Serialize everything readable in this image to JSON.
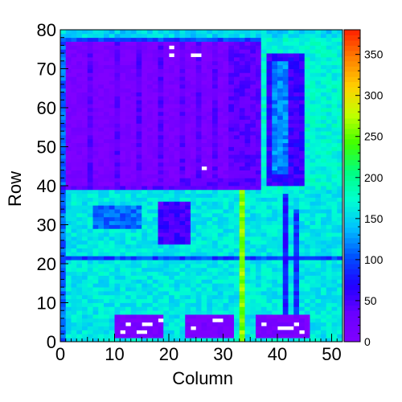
{
  "chart_data": {
    "type": "heatmap",
    "title": "",
    "xlabel": "Column",
    "ylabel": "Row",
    "xlim": [
      0,
      52
    ],
    "ylim": [
      0,
      80
    ],
    "x_ticks": [
      0,
      10,
      20,
      30,
      40,
      50
    ],
    "y_ticks": [
      0,
      10,
      20,
      30,
      40,
      50,
      60,
      70,
      80
    ],
    "color_scale": {
      "min": 0,
      "max": 380,
      "ticks": [
        0,
        50,
        100,
        150,
        200,
        250,
        300,
        350
      ],
      "palette": [
        "#8000ff",
        "#6a00ff",
        "#2000ff",
        "#0050ff",
        "#00c0ff",
        "#00ffd0",
        "#00ff80",
        "#40ff00",
        "#c0ff00",
        "#ffd000",
        "#ff8000",
        "#ff2000"
      ]
    },
    "cells": {
      "x_bins": 52,
      "y_bins": 80,
      "bin_size": [
        1,
        1
      ],
      "background_value": 160,
      "regions": [
        {
          "x": [
            0,
            52
          ],
          "y": [
            39,
            80
          ],
          "value": 100
        },
        {
          "x": [
            0,
            37
          ],
          "y": [
            39,
            77
          ],
          "value": 40
        },
        {
          "x": [
            1,
            5
          ],
          "y": [
            40,
            77
          ],
          "value": 8
        },
        {
          "x": [
            6,
            10
          ],
          "y": [
            40,
            77
          ],
          "value": 8
        },
        {
          "x": [
            11,
            14
          ],
          "y": [
            40,
            77
          ],
          "value": 8
        },
        {
          "x": [
            15,
            18
          ],
          "y": [
            40,
            77
          ],
          "value": 8
        },
        {
          "x": [
            19,
            22
          ],
          "y": [
            40,
            77
          ],
          "value": 8
        },
        {
          "x": [
            23,
            25
          ],
          "y": [
            42,
            77
          ],
          "value": 8
        },
        {
          "x": [
            26,
            28
          ],
          "y": [
            42,
            77
          ],
          "value": 8
        },
        {
          "x": [
            29,
            31
          ],
          "y": [
            42,
            77
          ],
          "value": 8
        },
        {
          "x": [
            0,
            1
          ],
          "y": [
            40,
            80
          ],
          "value": 110
        },
        {
          "x": [
            37,
            52
          ],
          "y": [
            39,
            80
          ],
          "value": 170
        },
        {
          "x": [
            38,
            45
          ],
          "y": [
            40,
            74
          ],
          "value": 60
        },
        {
          "x": [
            39,
            42
          ],
          "y": [
            43,
            72
          ],
          "value": 120
        },
        {
          "x": [
            0,
            52
          ],
          "y": [
            78,
            80
          ],
          "value": 150
        },
        {
          "x": [
            6,
            15
          ],
          "y": [
            29,
            35
          ],
          "value": 110
        },
        {
          "x": [
            18,
            24
          ],
          "y": [
            25,
            36
          ],
          "value": 55
        },
        {
          "x": [
            0,
            52
          ],
          "y": [
            21,
            22
          ],
          "value": 95
        },
        {
          "x": [
            0,
            1
          ],
          "y": [
            0,
            39
          ],
          "value": 110
        },
        {
          "x": [
            10,
            19
          ],
          "y": [
            1,
            7
          ],
          "value": 10
        },
        {
          "x": [
            23,
            32
          ],
          "y": [
            1,
            7
          ],
          "value": 10
        },
        {
          "x": [
            36,
            46
          ],
          "y": [
            1,
            7
          ],
          "value": 10
        },
        {
          "x": [
            33,
            34
          ],
          "y": [
            0,
            39
          ],
          "value": 260
        },
        {
          "x": [
            41,
            42
          ],
          "y": [
            7,
            38
          ],
          "value": 80
        },
        {
          "x": [
            43,
            44
          ],
          "y": [
            7,
            34
          ],
          "value": 90
        }
      ]
    },
    "empty_cells": [
      [
        20,
        75
      ],
      [
        20,
        73
      ],
      [
        24,
        73
      ],
      [
        25,
        73
      ],
      [
        26,
        44
      ],
      [
        12,
        4
      ],
      [
        15,
        4
      ],
      [
        16,
        4
      ],
      [
        18,
        5
      ],
      [
        11,
        2
      ],
      [
        14,
        2
      ],
      [
        15,
        2
      ],
      [
        24,
        3
      ],
      [
        28,
        5
      ],
      [
        29,
        5
      ],
      [
        37,
        4
      ],
      [
        40,
        3
      ],
      [
        41,
        3
      ],
      [
        42,
        3
      ],
      [
        43,
        4
      ],
      [
        44,
        2
      ]
    ],
    "grid": false,
    "legend": "colorbar-right"
  }
}
